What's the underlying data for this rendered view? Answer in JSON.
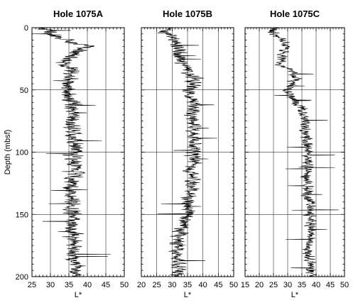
{
  "chart_data": [
    {
      "type": "line",
      "title": "Hole 1075A",
      "xlabel": "L*",
      "ylabel": "Depth (mbsf)",
      "xlim": [
        25,
        50
      ],
      "ylim": [
        0,
        200
      ],
      "y_inverted": true,
      "x_ticks": [
        25,
        30,
        35,
        40,
        45,
        50
      ],
      "y_ticks": [
        0,
        50,
        100,
        150,
        200
      ],
      "grid": true,
      "series": [
        {
          "profile": [
            [
              0,
              28
            ],
            [
              3,
              29
            ],
            [
              6,
              31
            ],
            [
              9,
              33
            ],
            [
              12,
              36
            ],
            [
              15,
              40
            ],
            [
              18,
              38
            ],
            [
              21,
              37
            ],
            [
              24,
              36
            ],
            [
              27,
              34
            ],
            [
              30,
              33
            ],
            [
              33,
              36
            ],
            [
              36,
              35
            ],
            [
              40,
              35
            ],
            [
              45,
              35
            ],
            [
              50,
              35
            ],
            [
              55,
              35
            ],
            [
              60,
              36
            ],
            [
              65,
              36
            ],
            [
              70,
              36
            ],
            [
              75,
              36
            ],
            [
              80,
              36
            ],
            [
              85,
              36
            ],
            [
              90,
              36
            ],
            [
              95,
              37
            ],
            [
              100,
              36
            ],
            [
              105,
              36
            ],
            [
              110,
              36
            ],
            [
              115,
              37
            ],
            [
              120,
              36
            ],
            [
              125,
              36
            ],
            [
              130,
              35
            ],
            [
              135,
              36
            ],
            [
              140,
              36
            ],
            [
              145,
              36
            ],
            [
              150,
              36
            ],
            [
              155,
              36
            ],
            [
              160,
              36
            ],
            [
              165,
              36
            ],
            [
              170,
              36
            ],
            [
              175,
              36
            ],
            [
              180,
              36
            ],
            [
              185,
              36
            ],
            [
              190,
              37
            ],
            [
              195,
              37
            ],
            [
              200,
              37
            ]
          ],
          "amplitude": 2.6
        }
      ]
    },
    {
      "type": "line",
      "title": "Hole 1075B",
      "xlabel": "L*",
      "ylabel": "",
      "xlim": [
        20,
        50
      ],
      "ylim": [
        0,
        200
      ],
      "y_inverted": true,
      "x_ticks": [
        20,
        25,
        30,
        35,
        40,
        45,
        50
      ],
      "y_ticks": [
        0,
        50,
        100,
        150,
        200
      ],
      "grid": true,
      "series": [
        {
          "profile": [
            [
              0,
              28
            ],
            [
              3,
              28
            ],
            [
              6,
              29
            ],
            [
              9,
              31
            ],
            [
              12,
              31
            ],
            [
              15,
              32
            ],
            [
              18,
              33
            ],
            [
              21,
              32
            ],
            [
              24,
              33
            ],
            [
              27,
              33
            ],
            [
              30,
              35
            ],
            [
              33,
              35
            ],
            [
              36,
              36
            ],
            [
              40,
              37
            ],
            [
              45,
              37
            ],
            [
              50,
              36
            ],
            [
              55,
              36
            ],
            [
              60,
              37
            ],
            [
              65,
              37
            ],
            [
              70,
              36
            ],
            [
              75,
              37
            ],
            [
              80,
              37
            ],
            [
              85,
              37
            ],
            [
              90,
              37
            ],
            [
              95,
              37
            ],
            [
              100,
              37
            ],
            [
              105,
              37
            ],
            [
              110,
              37
            ],
            [
              115,
              36
            ],
            [
              120,
              37
            ],
            [
              125,
              37
            ],
            [
              130,
              36
            ],
            [
              135,
              36
            ],
            [
              140,
              35
            ],
            [
              145,
              35
            ],
            [
              150,
              35
            ],
            [
              155,
              34
            ],
            [
              160,
              34
            ],
            [
              165,
              33
            ],
            [
              170,
              32
            ],
            [
              175,
              32
            ],
            [
              180,
              31
            ],
            [
              185,
              31
            ],
            [
              190,
              32
            ],
            [
              195,
              32
            ],
            [
              200,
              32
            ]
          ],
          "amplitude": 2.8
        }
      ]
    },
    {
      "type": "line",
      "title": "Hole 1075C",
      "xlabel": "L*",
      "ylabel": "",
      "xlim": [
        15,
        50
      ],
      "ylim": [
        0,
        200
      ],
      "y_inverted": true,
      "x_ticks": [
        15,
        20,
        25,
        30,
        35,
        40,
        45,
        50
      ],
      "y_ticks": [
        0,
        50,
        100,
        150,
        200
      ],
      "grid": true,
      "series": [
        {
          "profile": [
            [
              0,
              26
            ],
            [
              3,
              24
            ],
            [
              6,
              26
            ],
            [
              9,
              27
            ],
            [
              12,
              29
            ],
            [
              15,
              30
            ],
            [
              18,
              29
            ],
            [
              21,
              28
            ],
            [
              24,
              28
            ],
            [
              27,
              28
            ],
            [
              30,
              27
            ],
            [
              33,
              31
            ],
            [
              36,
              32
            ],
            [
              40,
              33
            ],
            [
              45,
              32
            ],
            [
              50,
              30
            ],
            [
              55,
              31
            ],
            [
              60,
              33
            ],
            [
              65,
              35
            ],
            [
              70,
              35
            ],
            [
              75,
              36
            ],
            [
              80,
              36
            ],
            [
              85,
              36
            ],
            [
              90,
              37
            ],
            [
              95,
              37
            ],
            [
              100,
              37
            ],
            [
              105,
              37
            ],
            [
              110,
              37
            ],
            [
              115,
              37
            ],
            [
              120,
              37
            ],
            [
              125,
              37
            ],
            [
              130,
              37
            ],
            [
              135,
              37
            ],
            [
              140,
              38
            ],
            [
              145,
              38
            ],
            [
              150,
              38
            ],
            [
              155,
              38
            ],
            [
              160,
              38
            ],
            [
              165,
              38
            ],
            [
              170,
              38
            ],
            [
              175,
              37
            ],
            [
              180,
              37
            ],
            [
              185,
              38
            ],
            [
              190,
              38
            ],
            [
              195,
              38
            ],
            [
              200,
              38
            ]
          ],
          "amplitude": 2.3
        }
      ]
    }
  ]
}
